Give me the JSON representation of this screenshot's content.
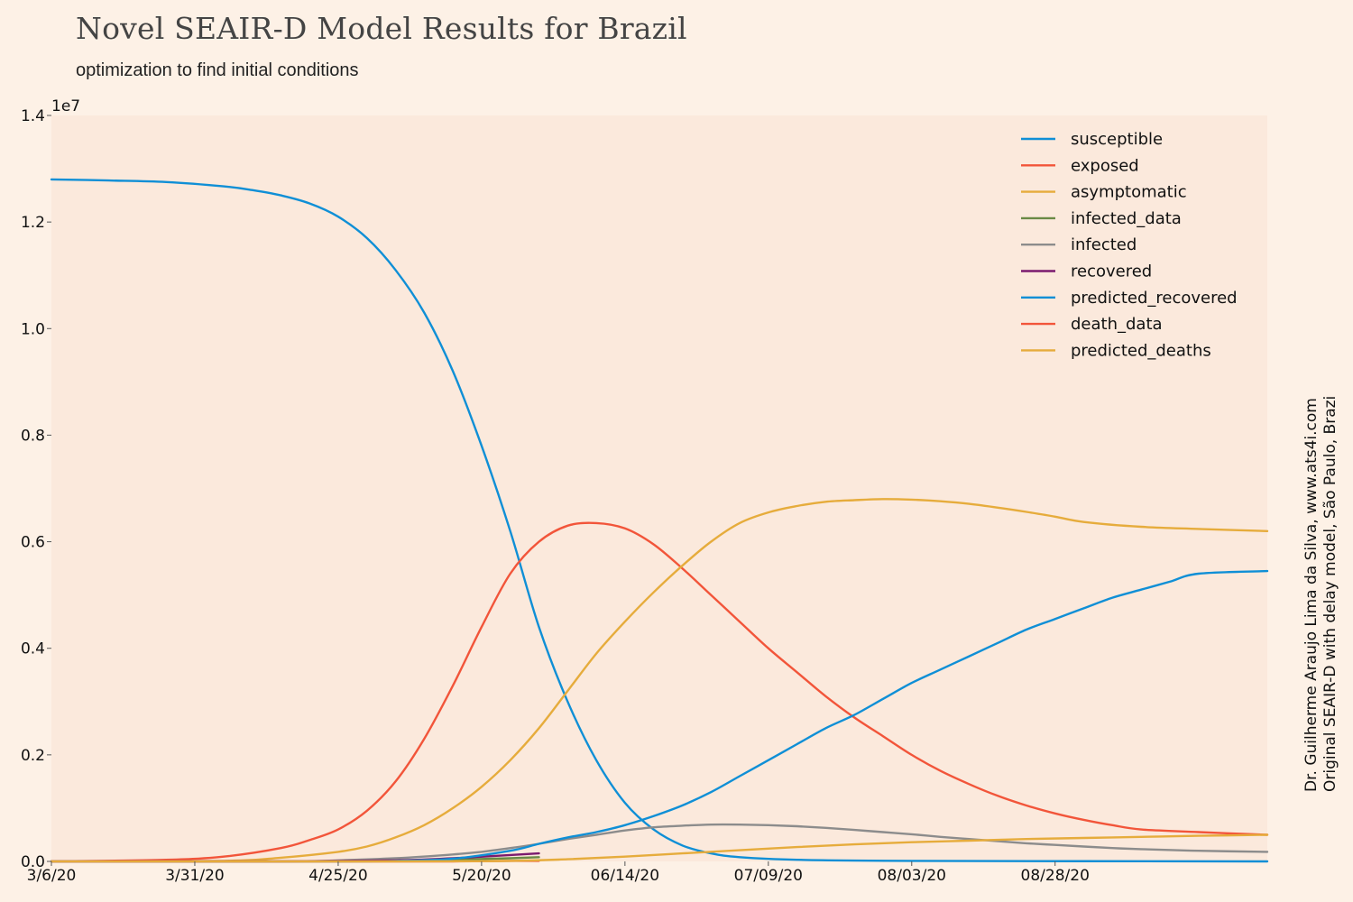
{
  "title": "Novel SEAIR-D Model Results for Brazil",
  "subtitle": "optimization to find initial conditions",
  "credit": {
    "line1": "Dr. Guilherme Araujo Lima da Silva, www.ats4i.com",
    "line2": "Original SEAIR-D with delay model, São Paulo, Brazil"
  },
  "colors": {
    "page_background": "#fdf1e6",
    "plot_background": "#fbe9dc",
    "blue": "#0f8fd6",
    "red": "#f2553a",
    "yellow": "#e6ac3c",
    "green": "#6a8a45",
    "gray": "#8c8c8c",
    "purple": "#7b1a6e"
  },
  "chart_data": {
    "type": "line",
    "y_multiplier_label": "1e7",
    "xlim": [
      0,
      212
    ],
    "ylim": [
      0,
      1.4
    ],
    "grid": false,
    "legend_position": "top-right",
    "x_ticks": [
      {
        "day": 0,
        "label": "3/6/20"
      },
      {
        "day": 25,
        "label": "3/31/20"
      },
      {
        "day": 50,
        "label": "4/25/20"
      },
      {
        "day": 75,
        "label": "5/20/20"
      },
      {
        "day": 100,
        "label": "06/14/20"
      },
      {
        "day": 125,
        "label": "07/09/20"
      },
      {
        "day": 150,
        "label": "08/03/20"
      },
      {
        "day": 175,
        "label": "08/28/20"
      }
    ],
    "y_ticks": [
      {
        "value": 0.0,
        "label": "0.0"
      },
      {
        "value": 0.2,
        "label": "0.2"
      },
      {
        "value": 0.4,
        "label": "0.4"
      },
      {
        "value": 0.6,
        "label": "0.6"
      },
      {
        "value": 0.8,
        "label": "0.8"
      },
      {
        "value": 1.0,
        "label": "1.0"
      },
      {
        "value": 1.2,
        "label": "1.2"
      },
      {
        "value": 1.4,
        "label": "1.4"
      }
    ],
    "series": [
      {
        "name": "susceptible",
        "color": "#0f8fd6",
        "points": [
          [
            0,
            1.28
          ],
          [
            10,
            1.278
          ],
          [
            20,
            1.275
          ],
          [
            30,
            1.267
          ],
          [
            35,
            1.26
          ],
          [
            40,
            1.25
          ],
          [
            45,
            1.235
          ],
          [
            50,
            1.21
          ],
          [
            55,
            1.17
          ],
          [
            60,
            1.11
          ],
          [
            65,
            1.03
          ],
          [
            70,
            0.92
          ],
          [
            75,
            0.78
          ],
          [
            80,
            0.62
          ],
          [
            85,
            0.44
          ],
          [
            90,
            0.3
          ],
          [
            95,
            0.19
          ],
          [
            100,
            0.11
          ],
          [
            105,
            0.06
          ],
          [
            110,
            0.03
          ],
          [
            115,
            0.015
          ],
          [
            120,
            0.008
          ],
          [
            130,
            0.003
          ],
          [
            150,
            0.001
          ],
          [
            212,
            0.0
          ]
        ]
      },
      {
        "name": "exposed",
        "color": "#f2553a",
        "points": [
          [
            0,
            0.0
          ],
          [
            20,
            0.003
          ],
          [
            30,
            0.009
          ],
          [
            40,
            0.025
          ],
          [
            45,
            0.04
          ],
          [
            50,
            0.06
          ],
          [
            55,
            0.095
          ],
          [
            60,
            0.15
          ],
          [
            65,
            0.23
          ],
          [
            70,
            0.33
          ],
          [
            75,
            0.44
          ],
          [
            80,
            0.54
          ],
          [
            85,
            0.6
          ],
          [
            90,
            0.63
          ],
          [
            95,
            0.635
          ],
          [
            100,
            0.625
          ],
          [
            105,
            0.595
          ],
          [
            110,
            0.55
          ],
          [
            115,
            0.5
          ],
          [
            120,
            0.45
          ],
          [
            125,
            0.4
          ],
          [
            130,
            0.355
          ],
          [
            135,
            0.31
          ],
          [
            140,
            0.27
          ],
          [
            145,
            0.235
          ],
          [
            150,
            0.2
          ],
          [
            155,
            0.17
          ],
          [
            160,
            0.145
          ],
          [
            165,
            0.123
          ],
          [
            170,
            0.105
          ],
          [
            175,
            0.09
          ],
          [
            180,
            0.078
          ],
          [
            185,
            0.068
          ],
          [
            190,
            0.06
          ],
          [
            200,
            0.055
          ],
          [
            212,
            0.05
          ]
        ]
      },
      {
        "name": "asymptomatic",
        "color": "#e6ac3c",
        "points": [
          [
            0,
            0.0
          ],
          [
            30,
            0.001
          ],
          [
            40,
            0.007
          ],
          [
            50,
            0.018
          ],
          [
            55,
            0.028
          ],
          [
            60,
            0.045
          ],
          [
            65,
            0.068
          ],
          [
            70,
            0.1
          ],
          [
            75,
            0.14
          ],
          [
            80,
            0.19
          ],
          [
            85,
            0.25
          ],
          [
            90,
            0.32
          ],
          [
            95,
            0.39
          ],
          [
            100,
            0.45
          ],
          [
            105,
            0.505
          ],
          [
            110,
            0.555
          ],
          [
            115,
            0.6
          ],
          [
            120,
            0.635
          ],
          [
            125,
            0.655
          ],
          [
            130,
            0.667
          ],
          [
            135,
            0.675
          ],
          [
            140,
            0.678
          ],
          [
            145,
            0.68
          ],
          [
            150,
            0.679
          ],
          [
            155,
            0.676
          ],
          [
            160,
            0.671
          ],
          [
            165,
            0.664
          ],
          [
            170,
            0.656
          ],
          [
            175,
            0.647
          ],
          [
            180,
            0.637
          ],
          [
            190,
            0.628
          ],
          [
            200,
            0.624
          ],
          [
            212,
            0.62
          ]
        ]
      },
      {
        "name": "infected_data",
        "color": "#6a8a45",
        "points": [
          [
            0,
            0.0
          ],
          [
            40,
            0.0
          ],
          [
            60,
            0.001
          ],
          [
            70,
            0.003
          ],
          [
            80,
            0.006
          ],
          [
            85,
            0.008
          ]
        ]
      },
      {
        "name": "infected",
        "color": "#8c8c8c",
        "points": [
          [
            0,
            0.0
          ],
          [
            40,
            0.0
          ],
          [
            50,
            0.002
          ],
          [
            60,
            0.006
          ],
          [
            70,
            0.013
          ],
          [
            75,
            0.018
          ],
          [
            80,
            0.025
          ],
          [
            85,
            0.033
          ],
          [
            90,
            0.042
          ],
          [
            95,
            0.05
          ],
          [
            100,
            0.058
          ],
          [
            105,
            0.064
          ],
          [
            110,
            0.067
          ],
          [
            115,
            0.069
          ],
          [
            120,
            0.069
          ],
          [
            125,
            0.068
          ],
          [
            130,
            0.066
          ],
          [
            135,
            0.063
          ],
          [
            140,
            0.059
          ],
          [
            145,
            0.055
          ],
          [
            150,
            0.051
          ],
          [
            155,
            0.046
          ],
          [
            160,
            0.042
          ],
          [
            165,
            0.038
          ],
          [
            170,
            0.034
          ],
          [
            175,
            0.031
          ],
          [
            180,
            0.028
          ],
          [
            185,
            0.025
          ],
          [
            190,
            0.023
          ],
          [
            200,
            0.02
          ],
          [
            212,
            0.018
          ]
        ]
      },
      {
        "name": "recovered",
        "color": "#7b1a6e",
        "points": [
          [
            0,
            0.0
          ],
          [
            40,
            0.0
          ],
          [
            60,
            0.002
          ],
          [
            70,
            0.006
          ],
          [
            80,
            0.012
          ],
          [
            85,
            0.015
          ]
        ]
      },
      {
        "name": "predicted_recovered",
        "color": "#0f8fd6",
        "points": [
          [
            0,
            0.0
          ],
          [
            50,
            0.0
          ],
          [
            60,
            0.001
          ],
          [
            70,
            0.005
          ],
          [
            80,
            0.02
          ],
          [
            85,
            0.033
          ],
          [
            90,
            0.045
          ],
          [
            95,
            0.055
          ],
          [
            100,
            0.068
          ],
          [
            105,
            0.085
          ],
          [
            110,
            0.105
          ],
          [
            115,
            0.13
          ],
          [
            120,
            0.16
          ],
          [
            125,
            0.19
          ],
          [
            130,
            0.22
          ],
          [
            135,
            0.25
          ],
          [
            140,
            0.275
          ],
          [
            145,
            0.305
          ],
          [
            150,
            0.335
          ],
          [
            155,
            0.36
          ],
          [
            160,
            0.385
          ],
          [
            165,
            0.41
          ],
          [
            170,
            0.435
          ],
          [
            175,
            0.455
          ],
          [
            180,
            0.475
          ],
          [
            185,
            0.495
          ],
          [
            190,
            0.51
          ],
          [
            195,
            0.525
          ],
          [
            200,
            0.54
          ],
          [
            212,
            0.545
          ]
        ]
      },
      {
        "name": "death_data",
        "color": "#f2553a",
        "points": [
          [
            0,
            0.0
          ],
          [
            60,
            0.0
          ],
          [
            70,
            0.0
          ],
          [
            80,
            0.001
          ],
          [
            85,
            0.001
          ]
        ]
      },
      {
        "name": "predicted_deaths",
        "color": "#e6ac3c",
        "points": [
          [
            0,
            0.0
          ],
          [
            60,
            0.0
          ],
          [
            80,
            0.001
          ],
          [
            90,
            0.004
          ],
          [
            100,
            0.009
          ],
          [
            110,
            0.015
          ],
          [
            120,
            0.021
          ],
          [
            130,
            0.027
          ],
          [
            140,
            0.032
          ],
          [
            150,
            0.036
          ],
          [
            160,
            0.039
          ],
          [
            170,
            0.042
          ],
          [
            180,
            0.044
          ],
          [
            190,
            0.046
          ],
          [
            200,
            0.048
          ],
          [
            212,
            0.05
          ]
        ]
      }
    ]
  }
}
